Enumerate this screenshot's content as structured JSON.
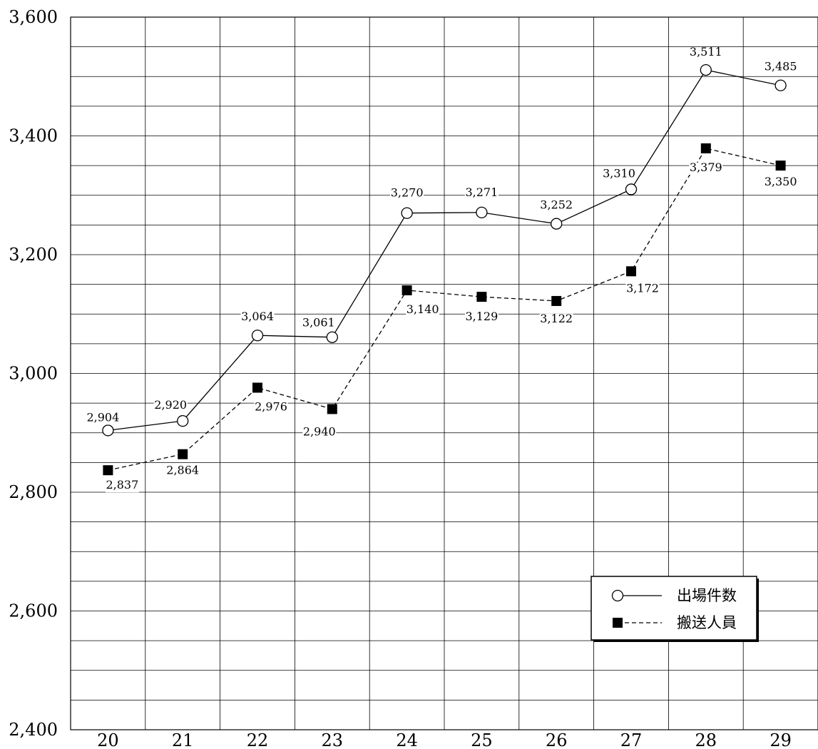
{
  "chart_data": {
    "type": "line",
    "title": "",
    "xlabel": "",
    "ylabel": "",
    "categories": [
      "20",
      "21",
      "22",
      "23",
      "24",
      "25",
      "26",
      "27",
      "28",
      "29"
    ],
    "y_ticks": [
      "2,400",
      "2,600",
      "2,800",
      "3,000",
      "3,200",
      "3,400",
      "3,600"
    ],
    "ylim": [
      2400,
      3600
    ],
    "grid": true,
    "legend_position": "bottom-right",
    "series": [
      {
        "name": "出場件数",
        "marker": "open-circle",
        "line": "solid",
        "values": [
          2904,
          2920,
          3064,
          3061,
          3270,
          3271,
          3252,
          3310,
          3511,
          3485
        ],
        "labels": [
          "2,904",
          "2,920",
          "3,064",
          "3,061",
          "3,270",
          "3,271",
          "3,252",
          "3,310",
          "3,511",
          "3,485"
        ]
      },
      {
        "name": "搬送人員",
        "marker": "filled-square",
        "line": "dashed",
        "values": [
          2837,
          2864,
          2976,
          2940,
          3140,
          3129,
          3122,
          3172,
          3379,
          3350
        ],
        "labels": [
          "2,837",
          "2,864",
          "2,976",
          "2,940",
          "3,140",
          "3,129",
          "3,122",
          "3,172",
          "3,379",
          "3,350"
        ]
      }
    ]
  }
}
